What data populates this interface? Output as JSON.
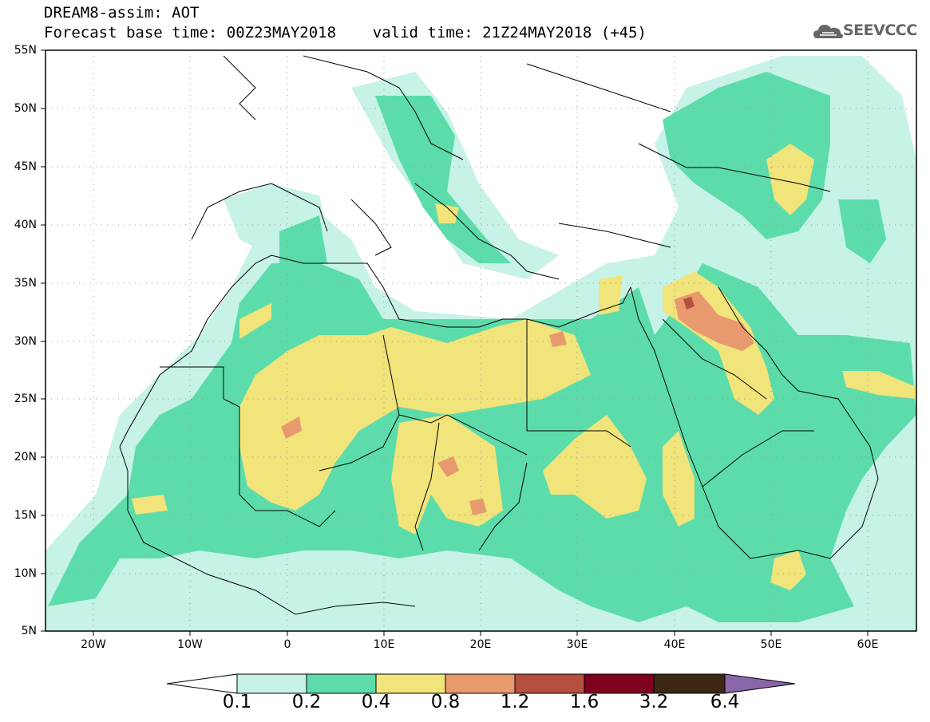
{
  "header": {
    "title_line1": "DREAM8-assim: AOT",
    "title_line2": "Forecast base time: 00Z23MAY2018    valid time: 21Z24MAY2018 (+45)"
  },
  "logo": {
    "text": "SEEVCCC",
    "icon": "cloud-icon"
  },
  "map": {
    "projection": "lat-lon",
    "extent": {
      "lon_min": -25,
      "lon_max": 65,
      "lat_min": 5,
      "lat_max": 55
    },
    "grid": true,
    "lat_labels": [
      "55N",
      "50N",
      "45N",
      "40N",
      "35N",
      "30N",
      "25N",
      "20N",
      "15N",
      "10N",
      "5N"
    ],
    "lon_labels": [
      "20W",
      "10W",
      "0",
      "10E",
      "20E",
      "30E",
      "40E",
      "50E",
      "60E"
    ]
  },
  "colorbar": {
    "labels": [
      "0.1",
      "0.2",
      "0.4",
      "0.8",
      "1.2",
      "1.6",
      "3.2",
      "6.4"
    ],
    "colors": [
      "#ffffff",
      "#c7f2e8",
      "#5cdcab",
      "#f0e47a",
      "#e89a6e",
      "#b54f3e",
      "#800020",
      "#3d2815",
      "#8a66a8"
    ]
  }
}
